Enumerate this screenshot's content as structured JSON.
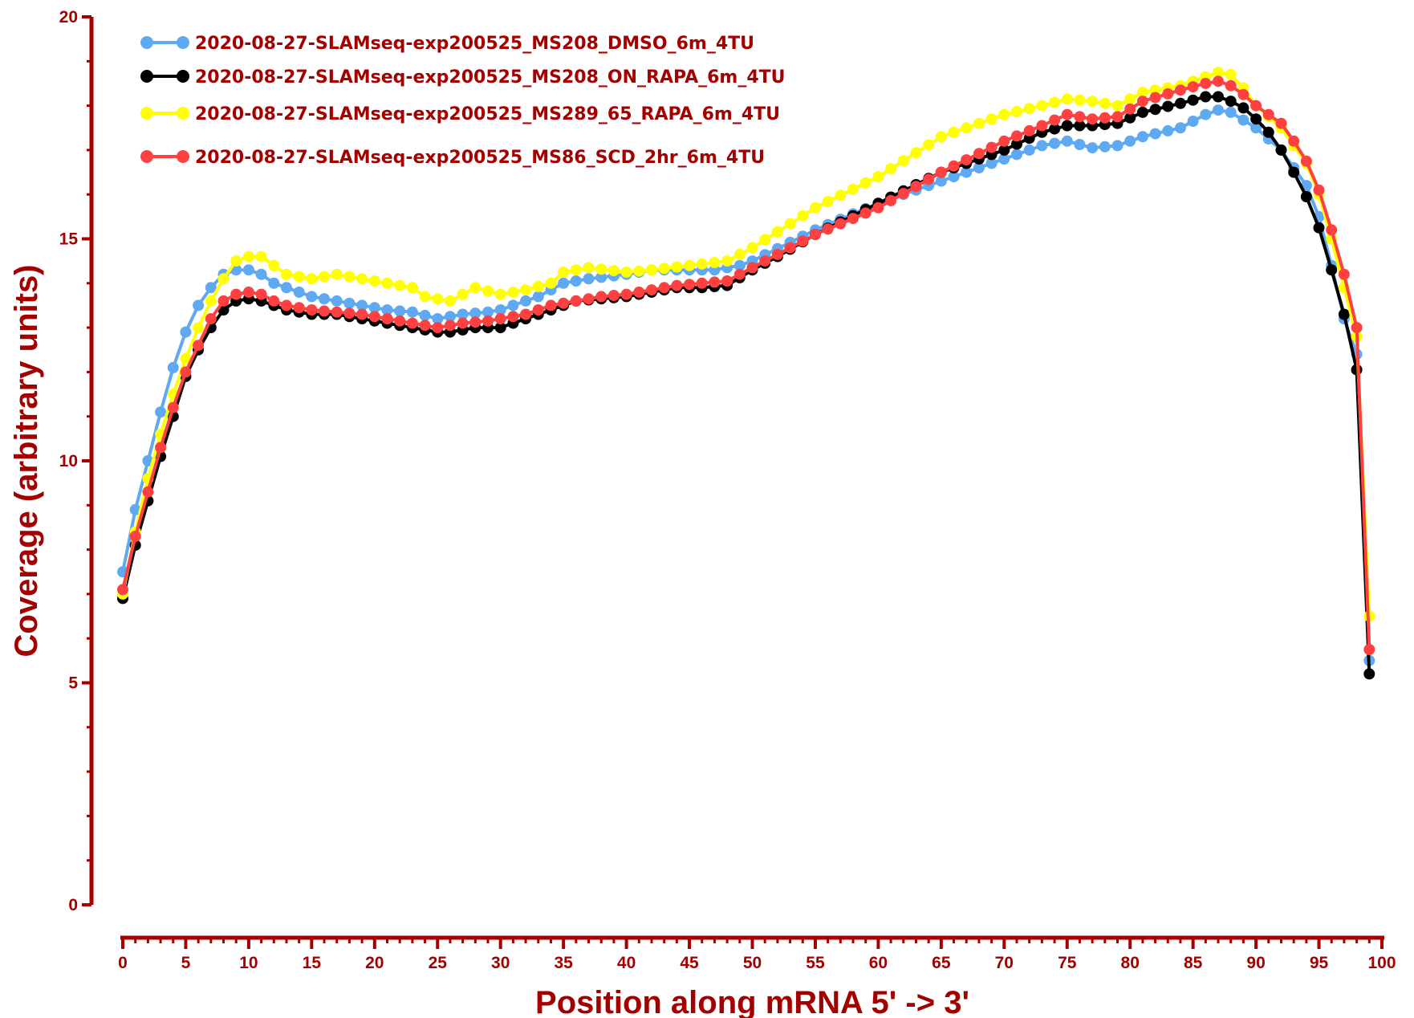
{
  "chart_data": {
    "type": "line",
    "title": "",
    "xlabel": "Position along mRNA 5' -> 3'",
    "ylabel": "Coverage (arbitrary units)",
    "xlim": [
      0,
      100
    ],
    "ylim": [
      0,
      20
    ],
    "x_ticks": [
      0,
      5,
      10,
      15,
      20,
      25,
      30,
      35,
      40,
      45,
      50,
      55,
      60,
      65,
      70,
      75,
      80,
      85,
      90,
      95,
      100
    ],
    "y_ticks": [
      0,
      5,
      10,
      15,
      20
    ],
    "grid": false,
    "legend_position": "top-left",
    "axis_color": "#a50000",
    "series": [
      {
        "name": "2020-08-27-SLAMseq-exp200525_MS208_DMSO_6m_4TU",
        "color": "#5ea9f2",
        "keypoints": [
          [
            0,
            7.5
          ],
          [
            1,
            8.9
          ],
          [
            2,
            10.0
          ],
          [
            3,
            11.1
          ],
          [
            4,
            12.1
          ],
          [
            5,
            12.9
          ],
          [
            6,
            13.5
          ],
          [
            7,
            13.9
          ],
          [
            8,
            14.2
          ],
          [
            9,
            14.3
          ],
          [
            10,
            14.3
          ],
          [
            11,
            14.2
          ],
          [
            12,
            14.0
          ],
          [
            13,
            13.9
          ],
          [
            14,
            13.8
          ],
          [
            15,
            13.7
          ],
          [
            17,
            13.6
          ],
          [
            19,
            13.5
          ],
          [
            21,
            13.4
          ],
          [
            23,
            13.35
          ],
          [
            25,
            13.2
          ],
          [
            27,
            13.3
          ],
          [
            29,
            13.35
          ],
          [
            30,
            13.4
          ],
          [
            33,
            13.7
          ],
          [
            35,
            14.0
          ],
          [
            37,
            14.1
          ],
          [
            40,
            14.2
          ],
          [
            42,
            14.3
          ],
          [
            45,
            14.3
          ],
          [
            47,
            14.3
          ],
          [
            49,
            14.4
          ],
          [
            50,
            14.5
          ],
          [
            55,
            15.2
          ],
          [
            60,
            15.8
          ],
          [
            65,
            16.3
          ],
          [
            70,
            16.8
          ],
          [
            73,
            17.1
          ],
          [
            75,
            17.2
          ],
          [
            77,
            17.05
          ],
          [
            79,
            17.1
          ],
          [
            81,
            17.3
          ],
          [
            84,
            17.5
          ],
          [
            86,
            17.8
          ],
          [
            87,
            17.9
          ],
          [
            88,
            17.85
          ],
          [
            90,
            17.5
          ],
          [
            92,
            17.0
          ],
          [
            94,
            16.2
          ],
          [
            95,
            15.5
          ],
          [
            96,
            14.4
          ],
          [
            97,
            13.2
          ],
          [
            98,
            12.4
          ],
          [
            99,
            5.5
          ]
        ]
      },
      {
        "name": "2020-08-27-SLAMseq-exp200525_MS208_ON_RAPA_6m_4TU",
        "color": "#000000",
        "keypoints": [
          [
            0,
            6.9
          ],
          [
            1,
            8.1
          ],
          [
            2,
            9.1
          ],
          [
            3,
            10.1
          ],
          [
            4,
            11.0
          ],
          [
            5,
            11.9
          ],
          [
            6,
            12.5
          ],
          [
            7,
            13.0
          ],
          [
            8,
            13.4
          ],
          [
            9,
            13.6
          ],
          [
            10,
            13.65
          ],
          [
            11,
            13.6
          ],
          [
            12,
            13.5
          ],
          [
            13,
            13.4
          ],
          [
            15,
            13.3
          ],
          [
            17,
            13.3
          ],
          [
            19,
            13.2
          ],
          [
            21,
            13.1
          ],
          [
            23,
            13.0
          ],
          [
            25,
            12.9
          ],
          [
            26,
            12.9
          ],
          [
            28,
            13.0
          ],
          [
            30,
            13.0
          ],
          [
            32,
            13.2
          ],
          [
            34,
            13.4
          ],
          [
            36,
            13.6
          ],
          [
            38,
            13.65
          ],
          [
            40,
            13.7
          ],
          [
            42,
            13.8
          ],
          [
            44,
            13.9
          ],
          [
            46,
            13.9
          ],
          [
            48,
            13.95
          ],
          [
            50,
            14.3
          ],
          [
            52,
            14.6
          ],
          [
            55,
            15.1
          ],
          [
            60,
            15.8
          ],
          [
            65,
            16.5
          ],
          [
            70,
            17.0
          ],
          [
            73,
            17.4
          ],
          [
            75,
            17.55
          ],
          [
            77,
            17.55
          ],
          [
            79,
            17.6
          ],
          [
            81,
            17.85
          ],
          [
            84,
            18.05
          ],
          [
            86,
            18.2
          ],
          [
            87,
            18.2
          ],
          [
            88,
            18.1
          ],
          [
            89,
            17.95
          ],
          [
            90,
            17.7
          ],
          [
            91,
            17.4
          ],
          [
            92,
            17.0
          ],
          [
            93,
            16.5
          ],
          [
            94,
            15.95
          ],
          [
            95,
            15.25
          ],
          [
            96,
            14.3
          ],
          [
            97,
            13.3
          ],
          [
            98,
            12.05
          ],
          [
            99,
            5.2
          ]
        ]
      },
      {
        "name": "2020-08-27-SLAMseq-exp200525_MS289_65_RAPA_6m_4TU",
        "color": "#ffff00",
        "keypoints": [
          [
            0,
            7.0
          ],
          [
            1,
            8.4
          ],
          [
            2,
            9.6
          ],
          [
            3,
            10.6
          ],
          [
            4,
            11.5
          ],
          [
            5,
            12.3
          ],
          [
            6,
            13.0
          ],
          [
            7,
            13.6
          ],
          [
            8,
            14.1
          ],
          [
            9,
            14.5
          ],
          [
            10,
            14.6
          ],
          [
            11,
            14.6
          ],
          [
            12,
            14.4
          ],
          [
            13,
            14.2
          ],
          [
            15,
            14.1
          ],
          [
            17,
            14.2
          ],
          [
            19,
            14.1
          ],
          [
            21,
            14.0
          ],
          [
            23,
            13.9
          ],
          [
            24,
            13.7
          ],
          [
            26,
            13.6
          ],
          [
            28,
            13.9
          ],
          [
            30,
            13.75
          ],
          [
            32,
            13.85
          ],
          [
            34,
            14.0
          ],
          [
            35,
            14.25
          ],
          [
            37,
            14.35
          ],
          [
            40,
            14.25
          ],
          [
            42,
            14.3
          ],
          [
            45,
            14.4
          ],
          [
            48,
            14.5
          ],
          [
            50,
            14.8
          ],
          [
            55,
            15.7
          ],
          [
            60,
            16.4
          ],
          [
            65,
            17.3
          ],
          [
            70,
            17.8
          ],
          [
            73,
            18.0
          ],
          [
            75,
            18.15
          ],
          [
            77,
            18.1
          ],
          [
            79,
            18.0
          ],
          [
            81,
            18.3
          ],
          [
            84,
            18.45
          ],
          [
            86,
            18.65
          ],
          [
            87,
            18.75
          ],
          [
            88,
            18.7
          ],
          [
            89,
            18.4
          ],
          [
            90,
            18.0
          ],
          [
            92,
            17.5
          ],
          [
            94,
            16.7
          ],
          [
            95,
            16.0
          ],
          [
            96,
            15.0
          ],
          [
            97,
            13.9
          ],
          [
            98,
            12.8
          ],
          [
            99,
            6.5
          ]
        ]
      },
      {
        "name": "2020-08-27-SLAMseq-exp200525_MS86_SCD_2hr_6m_4TU",
        "color": "#ff4040",
        "keypoints": [
          [
            0,
            7.1
          ],
          [
            1,
            8.3
          ],
          [
            2,
            9.3
          ],
          [
            3,
            10.3
          ],
          [
            4,
            11.2
          ],
          [
            5,
            12.0
          ],
          [
            6,
            12.6
          ],
          [
            7,
            13.2
          ],
          [
            8,
            13.6
          ],
          [
            9,
            13.75
          ],
          [
            10,
            13.8
          ],
          [
            11,
            13.75
          ],
          [
            12,
            13.6
          ],
          [
            13,
            13.5
          ],
          [
            15,
            13.4
          ],
          [
            17,
            13.35
          ],
          [
            19,
            13.3
          ],
          [
            21,
            13.2
          ],
          [
            23,
            13.1
          ],
          [
            25,
            13.0
          ],
          [
            27,
            13.1
          ],
          [
            29,
            13.15
          ],
          [
            30,
            13.2
          ],
          [
            32,
            13.3
          ],
          [
            34,
            13.5
          ],
          [
            36,
            13.6
          ],
          [
            38,
            13.7
          ],
          [
            40,
            13.75
          ],
          [
            42,
            13.85
          ],
          [
            44,
            13.95
          ],
          [
            46,
            14.0
          ],
          [
            48,
            14.05
          ],
          [
            50,
            14.35
          ],
          [
            55,
            15.1
          ],
          [
            60,
            15.7
          ],
          [
            65,
            16.5
          ],
          [
            70,
            17.2
          ],
          [
            73,
            17.55
          ],
          [
            75,
            17.8
          ],
          [
            77,
            17.7
          ],
          [
            79,
            17.75
          ],
          [
            81,
            18.1
          ],
          [
            84,
            18.35
          ],
          [
            86,
            18.5
          ],
          [
            87,
            18.55
          ],
          [
            88,
            18.45
          ],
          [
            89,
            18.25
          ],
          [
            90,
            18.0
          ],
          [
            92,
            17.6
          ],
          [
            93,
            17.2
          ],
          [
            94,
            16.75
          ],
          [
            95,
            16.1
          ],
          [
            96,
            15.2
          ],
          [
            97,
            14.2
          ],
          [
            98,
            13.0
          ],
          [
            99,
            5.75
          ]
        ]
      }
    ]
  }
}
